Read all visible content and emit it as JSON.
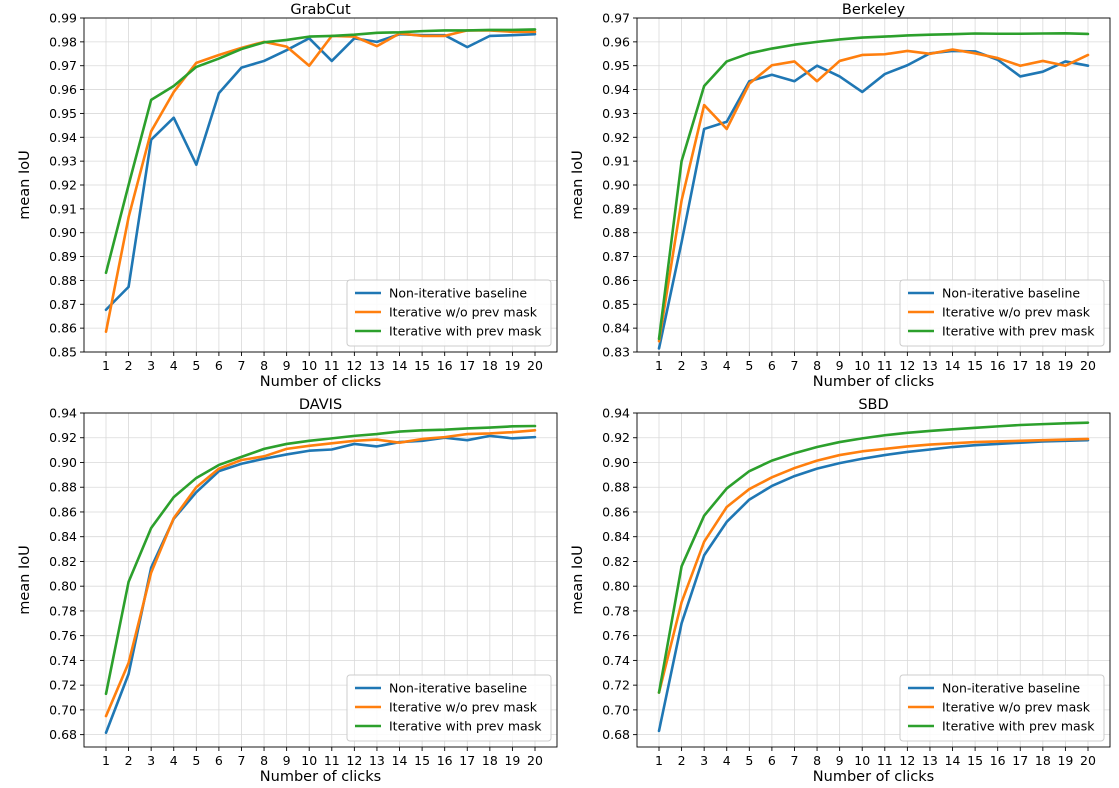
{
  "chart_data": [
    {
      "type": "line",
      "title": "GrabCut",
      "xlabel": "Number of clicks",
      "ylabel": "mean IoU",
      "x": [
        1,
        2,
        3,
        4,
        5,
        6,
        7,
        8,
        9,
        10,
        11,
        12,
        13,
        14,
        15,
        16,
        17,
        18,
        19,
        20
      ],
      "ylim": [
        0.85,
        0.99
      ],
      "yticks": [
        0.85,
        0.86,
        0.87,
        0.88,
        0.89,
        0.9,
        0.91,
        0.92,
        0.93,
        0.94,
        0.95,
        0.96,
        0.97,
        0.98,
        0.99
      ],
      "ytick_labels": [
        "0.85",
        "0.86",
        "0.87",
        "0.88",
        "0.89",
        "0.90",
        "0.91",
        "0.92",
        "0.93",
        "0.94",
        "0.95",
        "0.96",
        "0.97",
        "0.98",
        "0.99"
      ],
      "grid": true,
      "legend_position": "lower-right",
      "series": [
        {
          "name": "Non-iterative baseline",
          "color": "#1f77b4",
          "values": [
            0.8677,
            0.8773,
            0.939,
            0.9482,
            0.9285,
            0.9585,
            0.9692,
            0.972,
            0.9765,
            0.9815,
            0.972,
            0.9815,
            0.98,
            0.9832,
            0.9828,
            0.9828,
            0.9778,
            0.9825,
            0.9828,
            0.9832
          ]
        },
        {
          "name": "Iterative w/o prev mask",
          "color": "#ff7f0e",
          "values": [
            0.8585,
            0.9065,
            0.9425,
            0.959,
            0.9712,
            0.9745,
            0.9775,
            0.98,
            0.978,
            0.97,
            0.9825,
            0.9822,
            0.9782,
            0.9835,
            0.9825,
            0.9825,
            0.9848,
            0.9848,
            0.9842,
            0.9842
          ]
        },
        {
          "name": "Iterative with prev mask",
          "color": "#2ca02c",
          "values": [
            0.8832,
            0.92,
            0.9557,
            0.9615,
            0.9695,
            0.973,
            0.977,
            0.9798,
            0.9808,
            0.9822,
            0.9825,
            0.983,
            0.9838,
            0.984,
            0.9845,
            0.9848,
            0.9848,
            0.985,
            0.985,
            0.9852
          ]
        }
      ]
    },
    {
      "type": "line",
      "title": "Berkeley",
      "xlabel": "Number of clicks",
      "ylabel": "mean IoU",
      "x": [
        1,
        2,
        3,
        4,
        5,
        6,
        7,
        8,
        9,
        10,
        11,
        12,
        13,
        14,
        15,
        16,
        17,
        18,
        19,
        20
      ],
      "ylim": [
        0.83,
        0.97
      ],
      "yticks": [
        0.83,
        0.84,
        0.85,
        0.86,
        0.87,
        0.88,
        0.89,
        0.9,
        0.91,
        0.92,
        0.93,
        0.94,
        0.95,
        0.96,
        0.97
      ],
      "ytick_labels": [
        "0.83",
        "0.84",
        "0.85",
        "0.86",
        "0.87",
        "0.88",
        "0.89",
        "0.90",
        "0.91",
        "0.92",
        "0.93",
        "0.94",
        "0.95",
        "0.96",
        "0.97"
      ],
      "grid": true,
      "legend_position": "lower-right",
      "series": [
        {
          "name": "Non-iterative baseline",
          "color": "#1f77b4",
          "values": [
            0.8315,
            0.876,
            0.9235,
            0.9265,
            0.9435,
            0.9462,
            0.9435,
            0.95,
            0.9455,
            0.939,
            0.9465,
            0.9502,
            0.9552,
            0.9562,
            0.956,
            0.9525,
            0.9455,
            0.9475,
            0.9518,
            0.95
          ]
        },
        {
          "name": "Iterative w/o prev mask",
          "color": "#ff7f0e",
          "values": [
            0.8345,
            0.8935,
            0.9335,
            0.9235,
            0.9425,
            0.9502,
            0.9518,
            0.9435,
            0.952,
            0.9545,
            0.9548,
            0.9562,
            0.955,
            0.9568,
            0.9552,
            0.9532,
            0.95,
            0.952,
            0.95,
            0.9545
          ]
        },
        {
          "name": "Iterative with prev mask",
          "color": "#2ca02c",
          "values": [
            0.8355,
            0.91,
            0.9415,
            0.9518,
            0.9552,
            0.9572,
            0.9588,
            0.96,
            0.961,
            0.9618,
            0.9622,
            0.9627,
            0.963,
            0.9632,
            0.9635,
            0.9634,
            0.9634,
            0.9635,
            0.9636,
            0.9633
          ]
        }
      ]
    },
    {
      "type": "line",
      "title": "DAVIS",
      "xlabel": "Number of clicks",
      "ylabel": "mean IoU",
      "x": [
        1,
        2,
        3,
        4,
        5,
        6,
        7,
        8,
        9,
        10,
        11,
        12,
        13,
        14,
        15,
        16,
        17,
        18,
        19,
        20
      ],
      "ylim": [
        0.67,
        0.94
      ],
      "yticks": [
        0.68,
        0.7,
        0.72,
        0.74,
        0.76,
        0.78,
        0.8,
        0.82,
        0.84,
        0.86,
        0.88,
        0.9,
        0.92,
        0.94
      ],
      "ytick_labels": [
        "0.68",
        "0.70",
        "0.72",
        "0.74",
        "0.76",
        "0.78",
        "0.80",
        "0.82",
        "0.84",
        "0.86",
        "0.88",
        "0.90",
        "0.92",
        "0.94"
      ],
      "grid": true,
      "legend_position": "lower-right",
      "series": [
        {
          "name": "Non-iterative baseline",
          "color": "#1f77b4",
          "values": [
            0.6815,
            0.729,
            0.815,
            0.8545,
            0.876,
            0.893,
            0.899,
            0.903,
            0.9065,
            0.9095,
            0.9105,
            0.915,
            0.913,
            0.9165,
            0.9175,
            0.92,
            0.918,
            0.9215,
            0.9195,
            0.9205
          ]
        },
        {
          "name": "Iterative w/o prev mask",
          "color": "#ff7f0e",
          "values": [
            0.695,
            0.738,
            0.811,
            0.855,
            0.88,
            0.895,
            0.902,
            0.905,
            0.911,
            0.9135,
            0.9155,
            0.9175,
            0.9185,
            0.916,
            0.919,
            0.9205,
            0.923,
            0.9235,
            0.9245,
            0.926
          ]
        },
        {
          "name": "Iterative with prev mask",
          "color": "#2ca02c",
          "values": [
            0.713,
            0.8035,
            0.847,
            0.872,
            0.8875,
            0.898,
            0.9045,
            0.911,
            0.915,
            0.9175,
            0.9195,
            0.9215,
            0.923,
            0.925,
            0.926,
            0.9265,
            0.9275,
            0.9282,
            0.9292,
            0.9295
          ]
        }
      ]
    },
    {
      "type": "line",
      "title": "SBD",
      "xlabel": "Number of clicks",
      "ylabel": "mean IoU",
      "x": [
        1,
        2,
        3,
        4,
        5,
        6,
        7,
        8,
        9,
        10,
        11,
        12,
        13,
        14,
        15,
        16,
        17,
        18,
        19,
        20
      ],
      "ylim": [
        0.67,
        0.94
      ],
      "yticks": [
        0.68,
        0.7,
        0.72,
        0.74,
        0.76,
        0.78,
        0.8,
        0.82,
        0.84,
        0.86,
        0.88,
        0.9,
        0.92,
        0.94
      ],
      "ytick_labels": [
        "0.68",
        "0.70",
        "0.72",
        "0.74",
        "0.76",
        "0.78",
        "0.80",
        "0.82",
        "0.84",
        "0.86",
        "0.88",
        "0.90",
        "0.92",
        "0.94"
      ],
      "grid": true,
      "legend_position": "lower-right",
      "series": [
        {
          "name": "Non-iterative baseline",
          "color": "#1f77b4",
          "values": [
            0.683,
            0.77,
            0.825,
            0.852,
            0.87,
            0.881,
            0.889,
            0.895,
            0.8995,
            0.903,
            0.906,
            0.9085,
            0.9105,
            0.9125,
            0.914,
            0.915,
            0.916,
            0.917,
            0.9175,
            0.918
          ]
        },
        {
          "name": "Iterative w/o prev mask",
          "color": "#ff7f0e",
          "values": [
            0.714,
            0.787,
            0.836,
            0.864,
            0.8785,
            0.888,
            0.8955,
            0.9015,
            0.906,
            0.909,
            0.911,
            0.913,
            0.9145,
            0.9155,
            0.9165,
            0.917,
            0.9175,
            0.918,
            0.9185,
            0.919
          ]
        },
        {
          "name": "Iterative with prev mask",
          "color": "#2ca02c",
          "values": [
            0.714,
            0.816,
            0.857,
            0.879,
            0.893,
            0.9015,
            0.9075,
            0.9125,
            0.9165,
            0.9195,
            0.922,
            0.924,
            0.9255,
            0.9268,
            0.928,
            0.9292,
            0.9303,
            0.931,
            0.9317,
            0.9322
          ]
        }
      ]
    }
  ]
}
